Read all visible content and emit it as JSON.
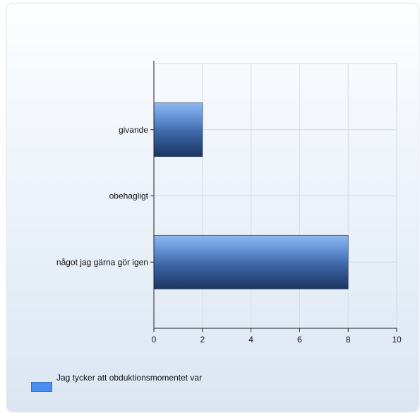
{
  "chart_data": {
    "type": "bar",
    "orientation": "horizontal",
    "categories": [
      "givande",
      "obehagligt",
      "något jag gärna gör igen"
    ],
    "series": [
      {
        "name": "Jag tycker att obduktionsmomentet var",
        "values": [
          2,
          0,
          8
        ]
      }
    ],
    "xlim": [
      0,
      10
    ],
    "x_ticks": [
      0,
      2,
      4,
      6,
      8,
      10
    ],
    "grid": true,
    "legend_position": "bottom-left"
  },
  "colors": {
    "bar_light": "#8fb8f0",
    "bar_mid": "#4d7cc2",
    "bar_dark": "#1b3560",
    "legend_swatch": "#4b8fee",
    "grid": "#d5dae2",
    "axis": "#222222"
  }
}
